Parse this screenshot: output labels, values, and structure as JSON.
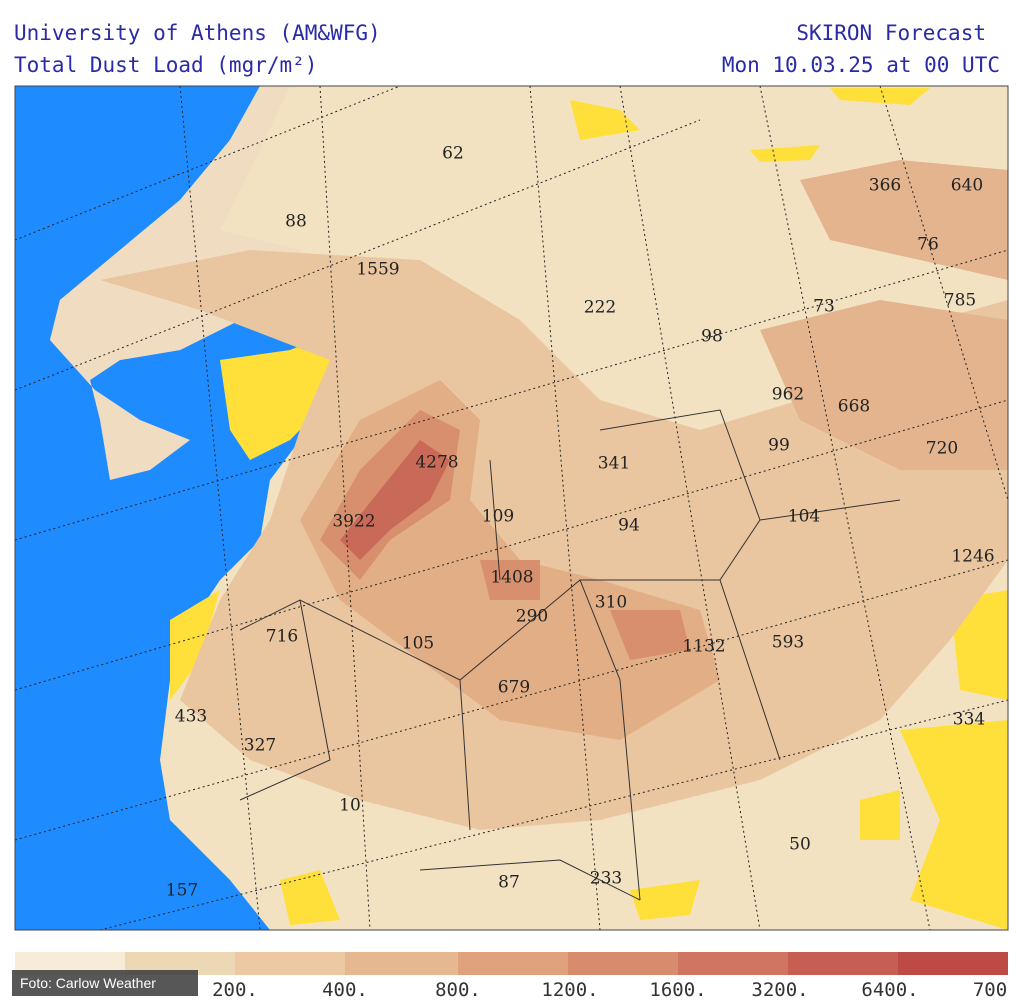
{
  "header": {
    "left": [
      "University of Athens (AM&WFG)",
      "Total Dust Load (mgr/m²)"
    ],
    "right": [
      "SKIRON Forecast",
      "Mon 10.03.25 at 00 UTC"
    ]
  },
  "map_labels": [
    "62",
    "88",
    "1559",
    "366",
    "640",
    "76",
    "785",
    "73",
    "98",
    "222",
    "962",
    "668",
    "99",
    "720",
    "4278",
    "341",
    "3922",
    "109",
    "94",
    "104",
    "1246",
    "1408",
    "310",
    "290",
    "716",
    "105",
    "1132",
    "593",
    "679",
    "433",
    "327",
    "334",
    "10",
    "50",
    "157",
    "87",
    "233"
  ],
  "legend": [
    "200.",
    "400.",
    "800.",
    "1200.",
    "1600.",
    "3200.",
    "6400.",
    "700"
  ],
  "credit": "Foto: Carlow Weather"
}
